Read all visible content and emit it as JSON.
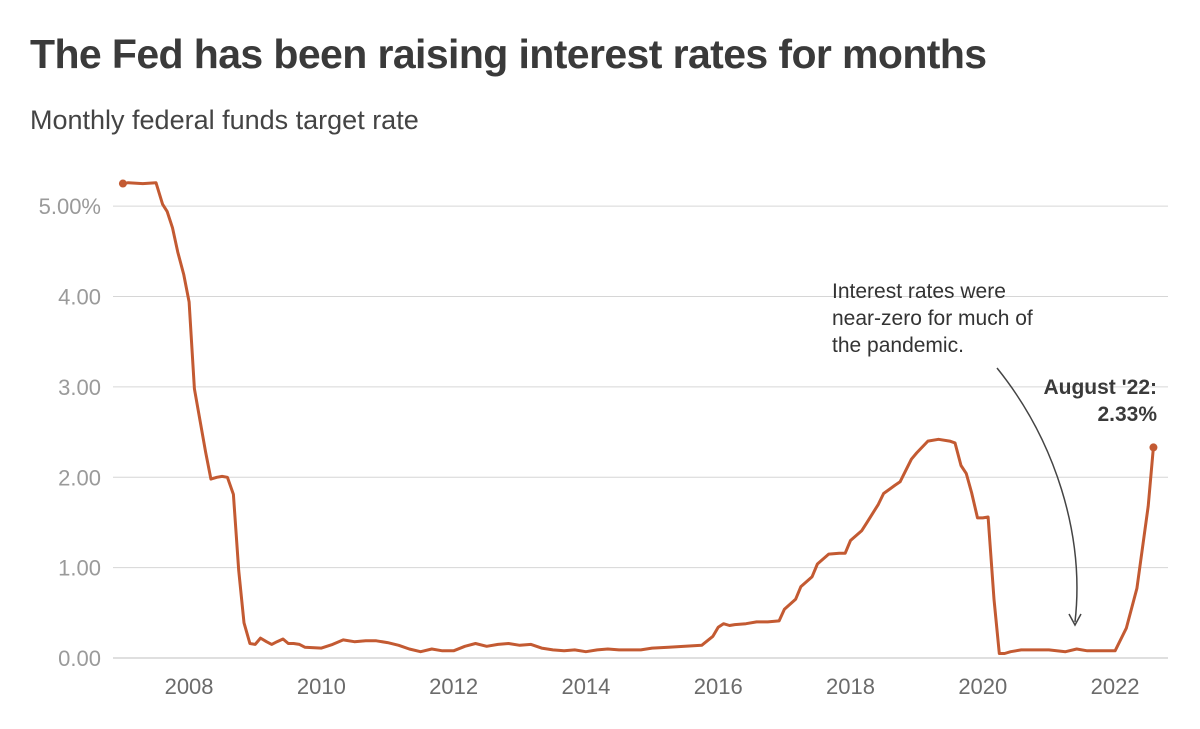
{
  "title": "The Fed has been raising interest rates for months",
  "subtitle": "Monthly federal funds target rate",
  "colors": {
    "line": "#c35a32",
    "grid": "#d6d6d6",
    "text": "#3a3a3a"
  },
  "chart_data": {
    "type": "line",
    "title": "The Fed has been raising interest rates for months",
    "subtitle": "Monthly federal funds target rate",
    "xlabel": "",
    "ylabel": "",
    "xlim": [
      2006.85,
      2022.8
    ],
    "ylim": [
      0,
      5.4
    ],
    "grid": true,
    "y_ticks": [
      0,
      1,
      2,
      3,
      4,
      5
    ],
    "y_tick_labels": [
      "0.00",
      "1.00",
      "2.00",
      "3.00",
      "4.00",
      "5.00%"
    ],
    "x_ticks": [
      2008,
      2010,
      2012,
      2014,
      2016,
      2018,
      2020,
      2022
    ],
    "x_tick_labels": [
      "2008",
      "2010",
      "2012",
      "2014",
      "2016",
      "2018",
      "2020",
      "2022"
    ],
    "series": [
      {
        "x": [
          2007.0,
          2007.08,
          2007.3,
          2007.5,
          2007.6,
          2007.67,
          2007.75,
          2007.83,
          2007.92,
          2008.0,
          2008.08,
          2008.17,
          2008.25,
          2008.33,
          2008.42,
          2008.5,
          2008.58,
          2008.67,
          2008.75,
          2008.83,
          2008.92,
          2009.0,
          2009.08,
          2009.17,
          2009.25,
          2009.33,
          2009.42,
          2009.5,
          2009.58,
          2009.67,
          2009.75,
          2010.0,
          2010.17,
          2010.33,
          2010.5,
          2010.67,
          2010.83,
          2011.0,
          2011.17,
          2011.33,
          2011.5,
          2011.67,
          2011.83,
          2012.0,
          2012.17,
          2012.33,
          2012.5,
          2012.67,
          2012.83,
          2013.0,
          2013.17,
          2013.33,
          2013.5,
          2013.67,
          2013.83,
          2014.0,
          2014.17,
          2014.33,
          2014.5,
          2014.67,
          2014.83,
          2015.0,
          2015.25,
          2015.5,
          2015.75,
          2015.92,
          2016.0,
          2016.08,
          2016.17,
          2016.25,
          2016.42,
          2016.58,
          2016.75,
          2016.92,
          2017.0,
          2017.17,
          2017.25,
          2017.42,
          2017.5,
          2017.67,
          2017.83,
          2017.92,
          2018.0,
          2018.17,
          2018.25,
          2018.42,
          2018.5,
          2018.67,
          2018.75,
          2018.92,
          2019.0,
          2019.17,
          2019.33,
          2019.5,
          2019.58,
          2019.67,
          2019.75,
          2019.83,
          2019.92,
          2020.0,
          2020.08,
          2020.17,
          2020.25,
          2020.33,
          2020.42,
          2020.58,
          2020.75,
          2021.0,
          2021.25,
          2021.42,
          2021.58,
          2021.75,
          2022.0,
          2022.17,
          2022.33,
          2022.5,
          2022.58
        ],
        "values": [
          5.25,
          5.26,
          5.25,
          5.26,
          5.02,
          4.94,
          4.76,
          4.49,
          4.24,
          3.94,
          2.98,
          2.61,
          2.28,
          1.98,
          2.0,
          2.01,
          2.0,
          1.81,
          0.97,
          0.39,
          0.16,
          0.15,
          0.22,
          0.18,
          0.15,
          0.18,
          0.21,
          0.16,
          0.16,
          0.15,
          0.12,
          0.11,
          0.15,
          0.2,
          0.18,
          0.19,
          0.19,
          0.17,
          0.14,
          0.1,
          0.07,
          0.1,
          0.08,
          0.08,
          0.13,
          0.16,
          0.13,
          0.15,
          0.16,
          0.14,
          0.15,
          0.11,
          0.09,
          0.08,
          0.09,
          0.07,
          0.09,
          0.1,
          0.09,
          0.09,
          0.09,
          0.11,
          0.12,
          0.13,
          0.14,
          0.24,
          0.34,
          0.38,
          0.36,
          0.37,
          0.38,
          0.4,
          0.4,
          0.41,
          0.54,
          0.65,
          0.79,
          0.9,
          1.04,
          1.15,
          1.16,
          1.16,
          1.3,
          1.41,
          1.5,
          1.7,
          1.82,
          1.91,
          1.95,
          2.2,
          2.27,
          2.4,
          2.42,
          2.4,
          2.38,
          2.13,
          2.04,
          1.83,
          1.55,
          1.55,
          1.56,
          0.65,
          0.05,
          0.05,
          0.07,
          0.09,
          0.09,
          0.09,
          0.07,
          0.1,
          0.08,
          0.08,
          0.08,
          0.33,
          0.77,
          1.68,
          2.33
        ]
      }
    ],
    "annotations": [
      {
        "text": [
          "Interest rates were",
          "near-zero for much of",
          "the pandemic."
        ]
      },
      {
        "text": [
          "August '22:",
          "2.33%"
        ]
      }
    ]
  }
}
